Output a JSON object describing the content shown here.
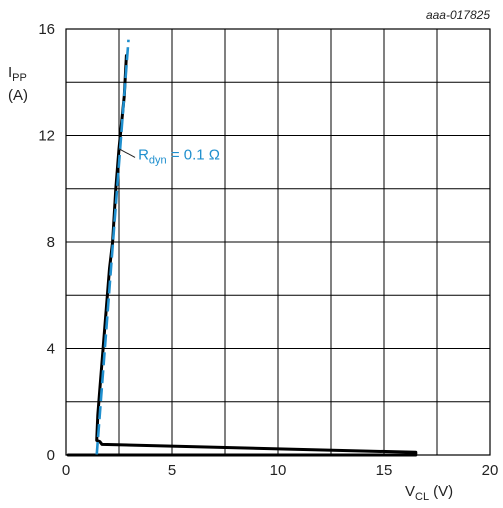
{
  "chart_data": {
    "type": "line",
    "figure_id": "aaa-017825",
    "xlabel": {
      "main": "V",
      "sub": "CL",
      "unit": "(V)"
    },
    "ylabel": {
      "main": "I",
      "sub": "PP",
      "unit": "(A)"
    },
    "xlim": [
      0,
      20
    ],
    "ylim": [
      0,
      16
    ],
    "xticks": [
      0,
      5,
      10,
      15,
      20
    ],
    "yticks": [
      0,
      4,
      8,
      12,
      16
    ],
    "xgrid_step": 2.5,
    "ygrid_step": 2,
    "grid": true,
    "series": [
      {
        "style": "solid",
        "color": "#000000",
        "points": [
          [
            0.1,
            0.0
          ],
          [
            16.5,
            0.0
          ],
          [
            16.5,
            0.1
          ],
          [
            1.7,
            0.4
          ],
          [
            1.6,
            0.5
          ],
          [
            1.45,
            0.55
          ],
          [
            1.5,
            1.5
          ],
          [
            1.6,
            2.5
          ],
          [
            1.75,
            4.0
          ],
          [
            1.9,
            5.5
          ],
          [
            2.05,
            7.0
          ],
          [
            2.2,
            8.0
          ],
          [
            2.35,
            10.0
          ],
          [
            2.5,
            11.5
          ],
          [
            2.75,
            13.5
          ],
          [
            2.85,
            15.0
          ]
        ]
      },
      {
        "style": "dashed",
        "color": "#1f8fce",
        "points": [
          [
            1.45,
            0.0
          ],
          [
            2.95,
            15.6
          ]
        ]
      }
    ],
    "annotation": {
      "label_main": "R",
      "label_sub": "dyn",
      "label_rest": " = 0.1 Ω",
      "color": "#1f8fce",
      "at": [
        2.5,
        11.5
      ],
      "text_at": [
        3.4,
        11.1
      ]
    }
  }
}
